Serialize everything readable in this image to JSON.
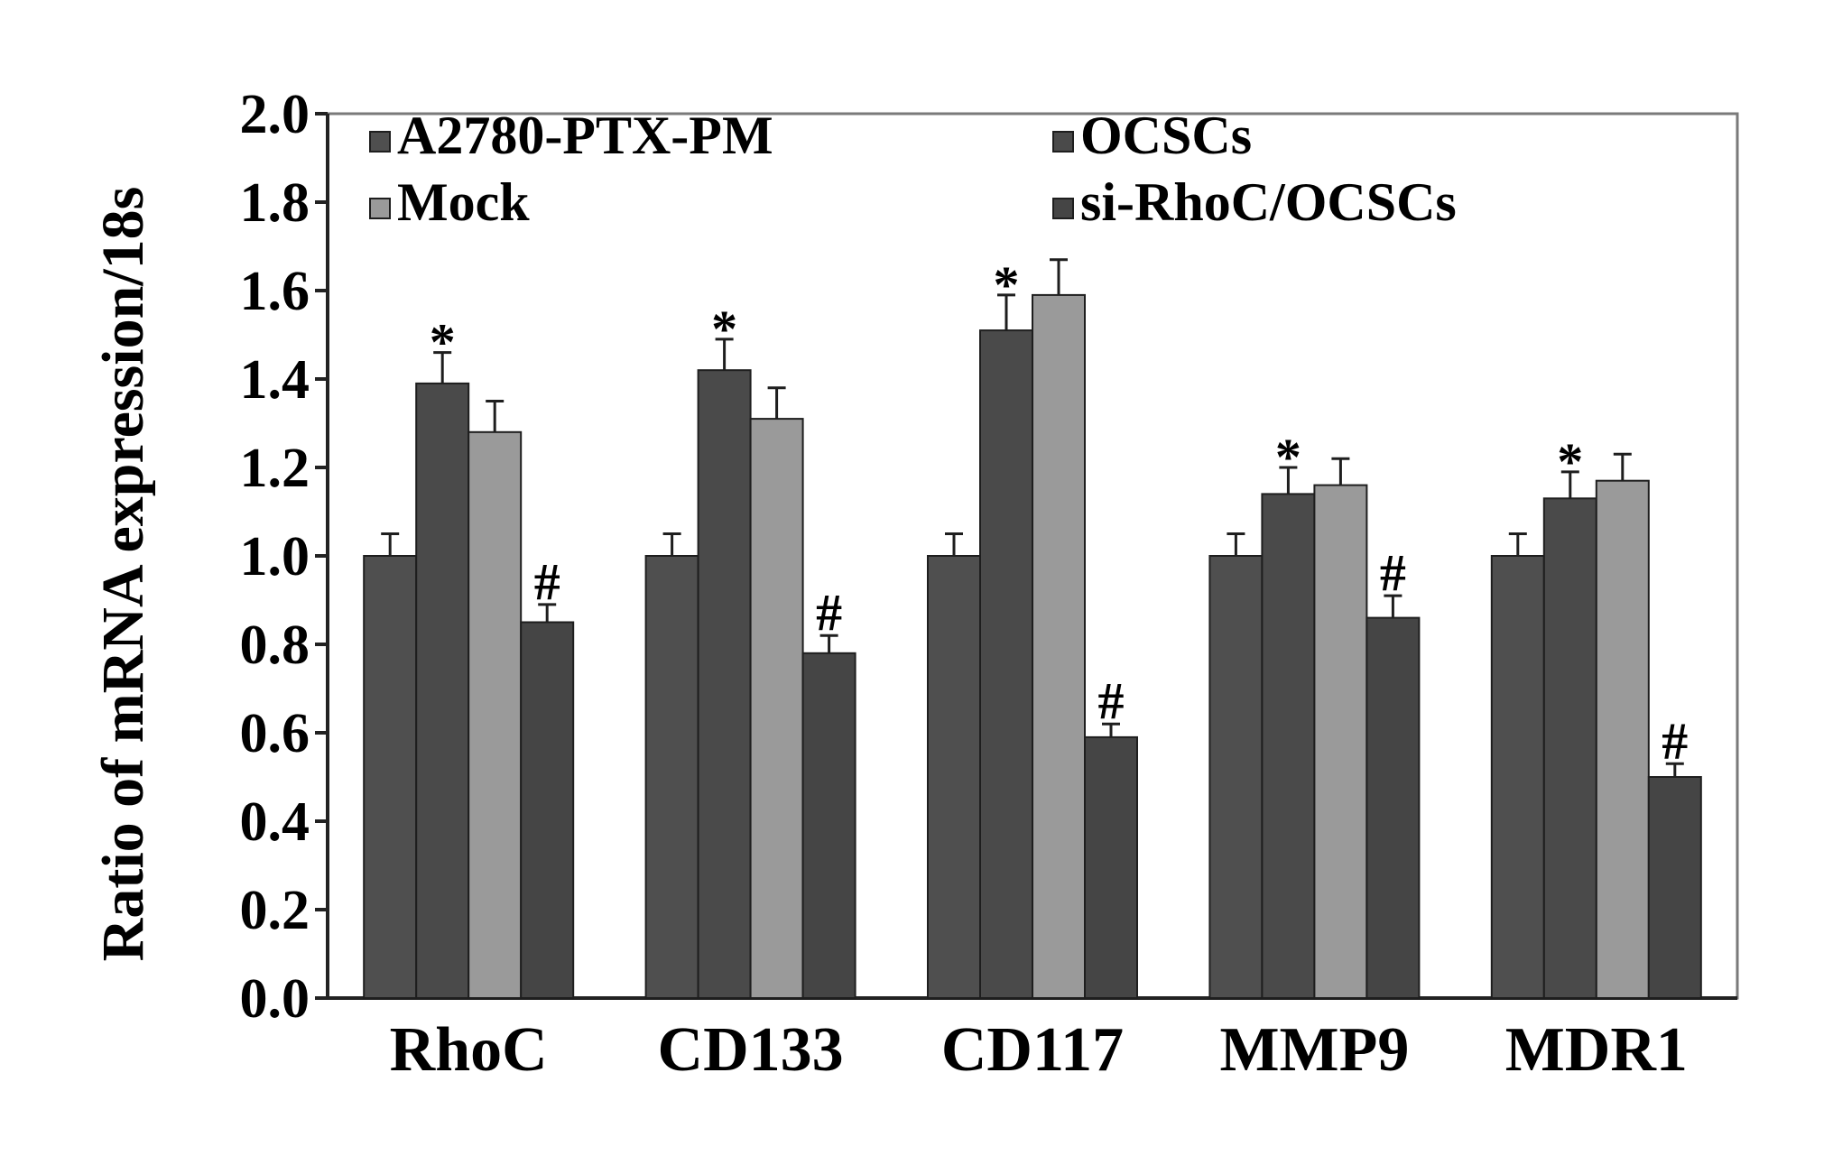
{
  "chart_data": {
    "type": "bar",
    "ylabel": "Ratio of mRNA expression/18s",
    "xlabel": "",
    "ylim": [
      0,
      2.0
    ],
    "yticks": [
      "0.0",
      "0.2",
      "0.4",
      "0.6",
      "0.8",
      "1.0",
      "1.2",
      "1.4",
      "1.6",
      "1.8",
      "2.0"
    ],
    "categories": [
      "RhoC",
      "CD133",
      "CD117",
      "MMP9",
      "MDR1"
    ],
    "series": [
      {
        "name": "A2780-PTX-PM",
        "color": "#4f4f4f",
        "values": [
          1.0,
          1.0,
          1.0,
          1.0,
          1.0
        ],
        "errors": [
          0.05,
          0.05,
          0.05,
          0.05,
          0.05
        ],
        "annotations": [
          "",
          "",
          "",
          "",
          ""
        ]
      },
      {
        "name": "OCSCs",
        "color": "#4a4a4a",
        "values": [
          1.39,
          1.42,
          1.51,
          1.14,
          1.13
        ],
        "errors": [
          0.07,
          0.07,
          0.08,
          0.06,
          0.06
        ],
        "annotations": [
          "*",
          "*",
          "*",
          "*",
          "*"
        ]
      },
      {
        "name": "Mock",
        "color": "#9a9a9a",
        "values": [
          1.28,
          1.31,
          1.59,
          1.16,
          1.17
        ],
        "errors": [
          0.07,
          0.07,
          0.08,
          0.06,
          0.06
        ],
        "annotations": [
          "",
          "",
          "",
          "",
          ""
        ]
      },
      {
        "name": "si-RhoC/OCSCs",
        "color": "#454545",
        "values": [
          0.85,
          0.78,
          0.59,
          0.86,
          0.5
        ],
        "errors": [
          0.04,
          0.04,
          0.03,
          0.05,
          0.03
        ],
        "annotations": [
          "#",
          "#",
          "#",
          "#",
          "#"
        ]
      }
    ],
    "legend_position": "top",
    "grid": false
  }
}
